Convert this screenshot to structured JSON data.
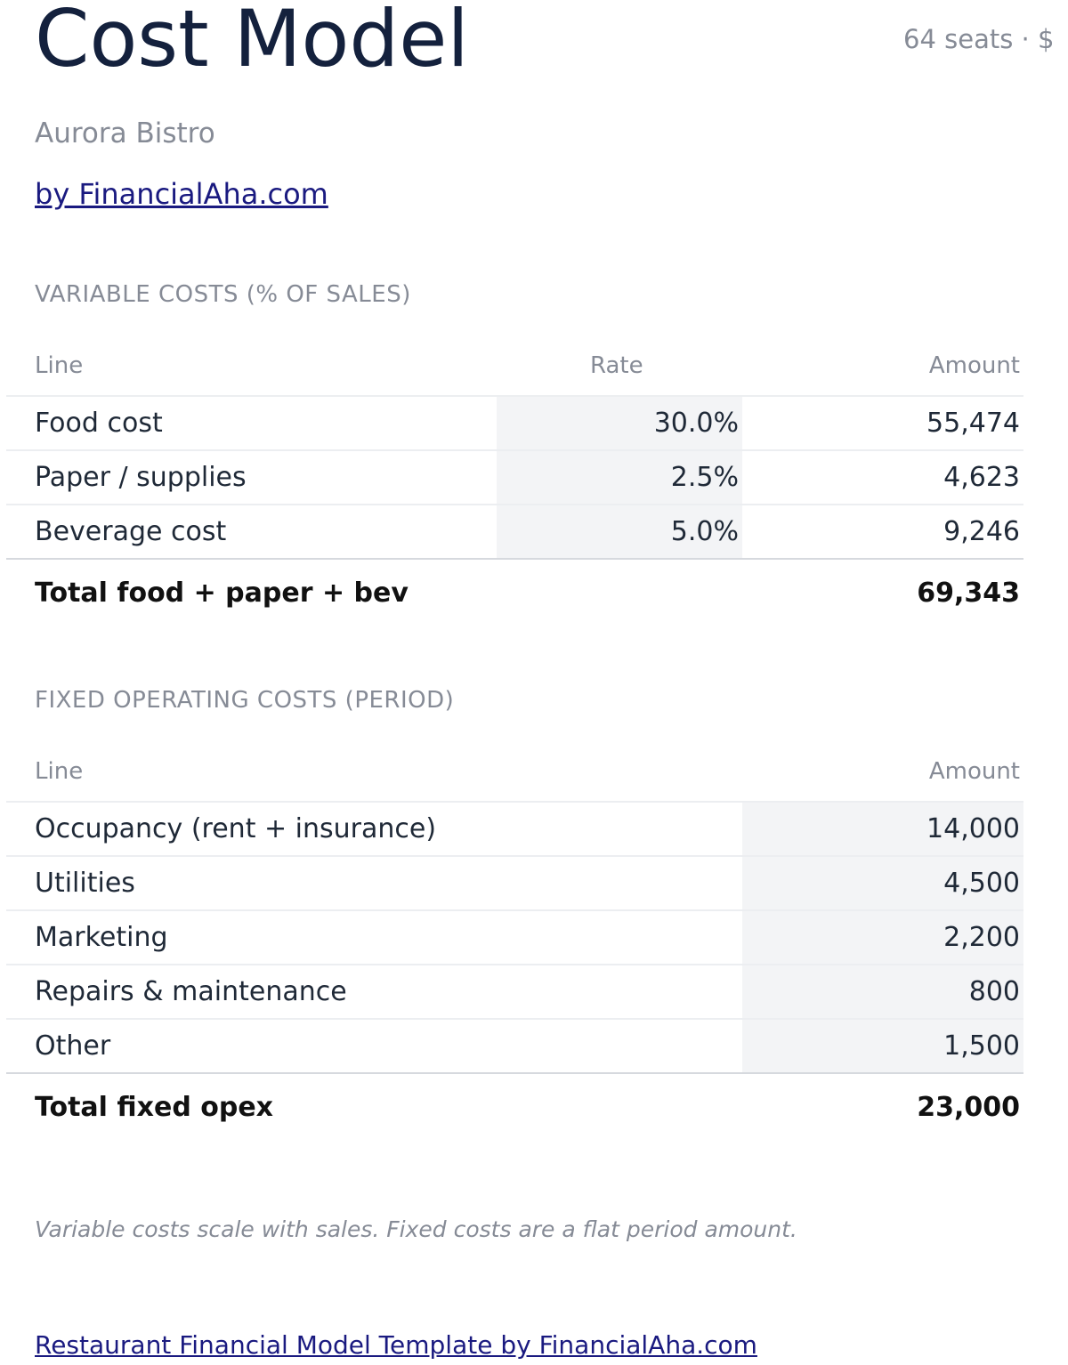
{
  "header": {
    "title": "Cost Model",
    "meta": "64 seats · $",
    "subtitle": "Aurora Bistro",
    "byline": "by FinancialAha.com"
  },
  "variable": {
    "section_label": "VARIABLE COSTS (% OF SALES)",
    "columns": {
      "line": "Line",
      "rate": "Rate",
      "amount": "Amount"
    },
    "rows": [
      {
        "line": "Food cost",
        "rate": "30.0%",
        "amount": "55,474"
      },
      {
        "line": "Paper / supplies",
        "rate": "2.5%",
        "amount": "4,623"
      },
      {
        "line": "Beverage cost",
        "rate": "5.0%",
        "amount": "9,246"
      }
    ],
    "total": {
      "label": "Total food + paper + bev",
      "amount": "69,343"
    }
  },
  "fixed": {
    "section_label": "FIXED OPERATING COSTS (PERIOD)",
    "columns": {
      "line": "Line",
      "amount": "Amount"
    },
    "rows": [
      {
        "line": "Occupancy (rent + insurance)",
        "amount": "14,000"
      },
      {
        "line": "Utilities",
        "amount": "4,500"
      },
      {
        "line": "Marketing",
        "amount": "2,200"
      },
      {
        "line": "Repairs & maintenance",
        "amount": "800"
      },
      {
        "line": "Other",
        "amount": "1,500"
      }
    ],
    "total": {
      "label": "Total fixed opex",
      "amount": "23,000"
    }
  },
  "note": "Variable costs scale with sales. Fixed costs are a flat period amount.",
  "footer_link": "Restaurant Financial Model Template by FinancialAha.com",
  "colors": {
    "title": "#14213d",
    "muted": "#868b96",
    "link": "#1a1a80",
    "input_shade": "#f3f4f6"
  }
}
